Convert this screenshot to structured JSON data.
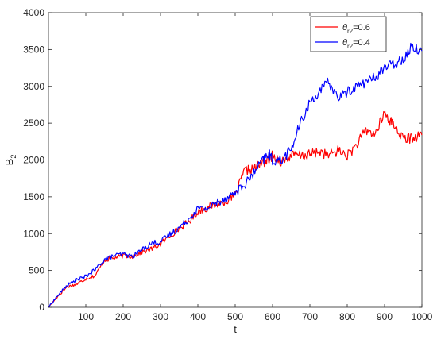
{
  "chart_data": {
    "type": "line",
    "title": "",
    "xlabel": "t",
    "ylabel": "B",
    "ylabel_sub": "2",
    "xlim": [
      0,
      1000
    ],
    "ylim": [
      0,
      4000
    ],
    "xticks": [
      100,
      200,
      300,
      400,
      500,
      600,
      700,
      800,
      900,
      1000
    ],
    "yticks": [
      0,
      500,
      1000,
      1500,
      2000,
      2500,
      3000,
      3500,
      4000
    ],
    "grid": false,
    "legend_position": "top-right",
    "series": [
      {
        "name": "θ_r2=0.6",
        "legend": {
          "symbol": "θ",
          "sub": "r2",
          "suffix": "=0.6"
        },
        "color": "#ff0000",
        "x": [
          0,
          25,
          50,
          75,
          100,
          125,
          150,
          175,
          200,
          225,
          250,
          275,
          300,
          325,
          350,
          375,
          400,
          425,
          450,
          475,
          500,
          525,
          550,
          575,
          590,
          600,
          625,
          650,
          675,
          700,
          725,
          750,
          775,
          800,
          825,
          850,
          875,
          900,
          910,
          925,
          950,
          975,
          1000
        ],
        "y": [
          0,
          150,
          280,
          310,
          390,
          430,
          640,
          670,
          700,
          690,
          750,
          790,
          860,
          970,
          1070,
          1160,
          1300,
          1350,
          1400,
          1440,
          1520,
          1850,
          1880,
          1970,
          2000,
          2060,
          1980,
          2060,
          2060,
          2070,
          2120,
          2060,
          2130,
          2060,
          2200,
          2400,
          2350,
          2640,
          2560,
          2480,
          2280,
          2300,
          2340
        ]
      },
      {
        "name": "θ_r2=0.4",
        "legend": {
          "symbol": "θ",
          "sub": "r2",
          "suffix": "=0.4"
        },
        "color": "#0000ff",
        "x": [
          0,
          25,
          50,
          75,
          100,
          125,
          150,
          175,
          200,
          225,
          250,
          275,
          300,
          325,
          350,
          375,
          400,
          425,
          450,
          475,
          500,
          525,
          550,
          575,
          590,
          600,
          625,
          650,
          675,
          700,
          725,
          750,
          775,
          800,
          825,
          850,
          875,
          900,
          925,
          950,
          975,
          1000
        ],
        "y": [
          0,
          160,
          300,
          370,
          420,
          510,
          650,
          700,
          720,
          690,
          780,
          870,
          890,
          990,
          1080,
          1200,
          1340,
          1340,
          1420,
          1480,
          1560,
          1660,
          1820,
          2000,
          2090,
          1990,
          2000,
          2150,
          2500,
          2780,
          2920,
          3060,
          2850,
          2920,
          3000,
          3060,
          3120,
          3260,
          3300,
          3380,
          3550,
          3480
        ]
      }
    ]
  }
}
